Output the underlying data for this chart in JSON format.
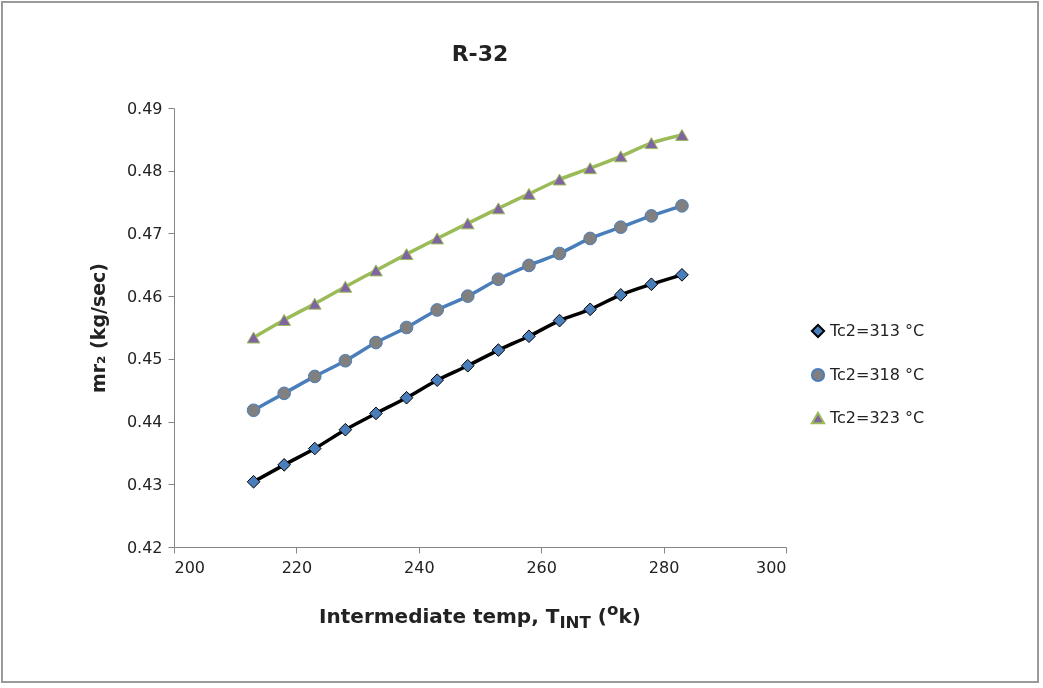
{
  "chart_data": {
    "type": "line",
    "title": "R-32",
    "xlabel": "Intermediate temp, T$_{INT}$ ($^{o}$k)",
    "ylabel": "mr₂ (kg/sec)",
    "x": [
      213,
      218,
      223,
      228,
      233,
      238,
      243,
      248,
      253,
      258,
      263,
      268,
      273,
      278,
      283
    ],
    "series": [
      {
        "name": "Tc2=313 °C",
        "color": "#000000",
        "marker": "diamond",
        "values": [
          0.4304,
          0.4331,
          0.4357,
          0.4387,
          0.4413,
          0.4438,
          0.4466,
          0.4489,
          0.4514,
          0.4536,
          0.4561,
          0.4579,
          0.4602,
          0.4619,
          0.4634
        ]
      },
      {
        "name": "Tc2=318 °C",
        "color": "#4a7ebb",
        "marker": "circle",
        "values": [
          0.4418,
          0.4445,
          0.4472,
          0.4497,
          0.4526,
          0.455,
          0.4578,
          0.46,
          0.4627,
          0.4649,
          0.4668,
          0.4692,
          0.471,
          0.4728,
          0.4744
        ]
      },
      {
        "name": "Tc2=323 °C",
        "color": "#9bbb59",
        "marker": "triangle",
        "values": [
          0.4534,
          0.4562,
          0.4588,
          0.4615,
          0.4641,
          0.4667,
          0.4692,
          0.4716,
          0.474,
          0.4763,
          0.4786,
          0.4804,
          0.4823,
          0.4844,
          0.4857
        ]
      }
    ],
    "xlim": [
      200,
      300
    ],
    "xticks": [
      200,
      220,
      240,
      260,
      280,
      300
    ],
    "ylim": [
      0.42,
      0.49
    ],
    "yticks": [
      0.42,
      0.43,
      0.44,
      0.45,
      0.46,
      0.47,
      0.48,
      0.49
    ],
    "legend": "right"
  }
}
